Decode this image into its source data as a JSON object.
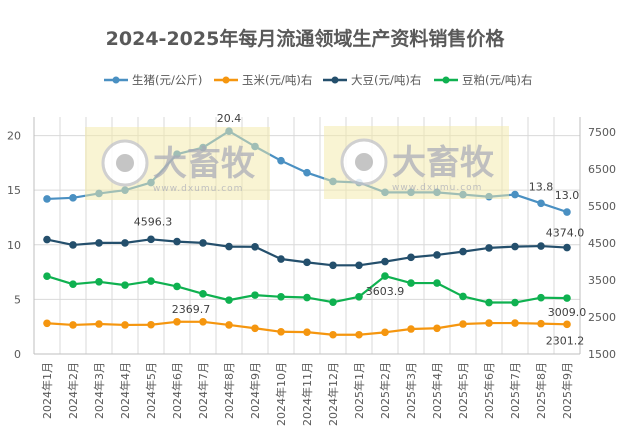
{
  "chart_data": {
    "type": "line",
    "title": "2024-2025年每月流通领域生产资料销售价格",
    "categories": [
      "2024年1月",
      "2024年2月",
      "2024年3月",
      "2024年4月",
      "2024年5月",
      "2024年6月",
      "2024年7月",
      "2024年8月",
      "2024年9月",
      "2024年10月",
      "2024年11月",
      "2024年12月",
      "2025年1月",
      "2025年2月",
      "2025年3月",
      "2025年4月",
      "2025年5月",
      "2025年6月",
      "2025年7月",
      "2025年8月",
      "2025年9月"
    ],
    "y_left": {
      "ylim": [
        0,
        21.7
      ],
      "ticks": [
        0,
        5,
        10,
        15,
        20
      ]
    },
    "y_right": {
      "ylim": [
        1500,
        7900
      ],
      "ticks": [
        1500,
        2500,
        3500,
        4500,
        5500,
        6500,
        7500
      ]
    },
    "grid": true,
    "legend_position": "top",
    "series": [
      {
        "name": "生猪(元/公斤)",
        "axis": "left",
        "color": "#4a90c2",
        "values": [
          14.2,
          14.3,
          14.7,
          15.0,
          15.7,
          18.3,
          18.9,
          20.4,
          19.0,
          17.7,
          16.6,
          15.8,
          15.7,
          14.8,
          14.8,
          14.8,
          14.6,
          14.4,
          14.6,
          13.8,
          13.0
        ],
        "labels": {
          "7": "20.4",
          "19": "13.8",
          "20": "13.0"
        }
      },
      {
        "name": "玉米(元/吨)右",
        "axis": "right",
        "color": "#f5960f",
        "values": [
          2330,
          2285,
          2310,
          2285,
          2290,
          2370,
          2369.7,
          2285,
          2195,
          2100,
          2090,
          2020,
          2020,
          2085,
          2175,
          2195,
          2310,
          2335,
          2335,
          2320,
          2301.2
        ],
        "labels": {
          "6": "2369.7",
          "20": "2301.2"
        }
      },
      {
        "name": "大豆(元/吨)右",
        "axis": "right",
        "color": "#244f6c",
        "values": [
          4590,
          4445,
          4500,
          4500,
          4596.3,
          4535,
          4500,
          4400,
          4395,
          4065,
          3975,
          3895,
          3895,
          3995,
          4110,
          4175,
          4265,
          4365,
          4400,
          4415,
          4374.0
        ],
        "labels": {
          "4": "4596.3",
          "20": "4374.0"
        }
      },
      {
        "name": "豆粕(元/吨)右",
        "axis": "right",
        "color": "#0fb150",
        "values": [
          3600,
          3385,
          3450,
          3360,
          3470,
          3325,
          3125,
          2955,
          3090,
          3045,
          3025,
          2900,
          3045,
          3603.9,
          3415,
          3415,
          3055,
          2890,
          2890,
          3020,
          3009.0
        ],
        "labels": {
          "13": "3603.9",
          "20": "3009.0"
        }
      }
    ]
  },
  "watermark": {
    "brand": "大畜牧",
    "url": "www.dxumu.com"
  }
}
